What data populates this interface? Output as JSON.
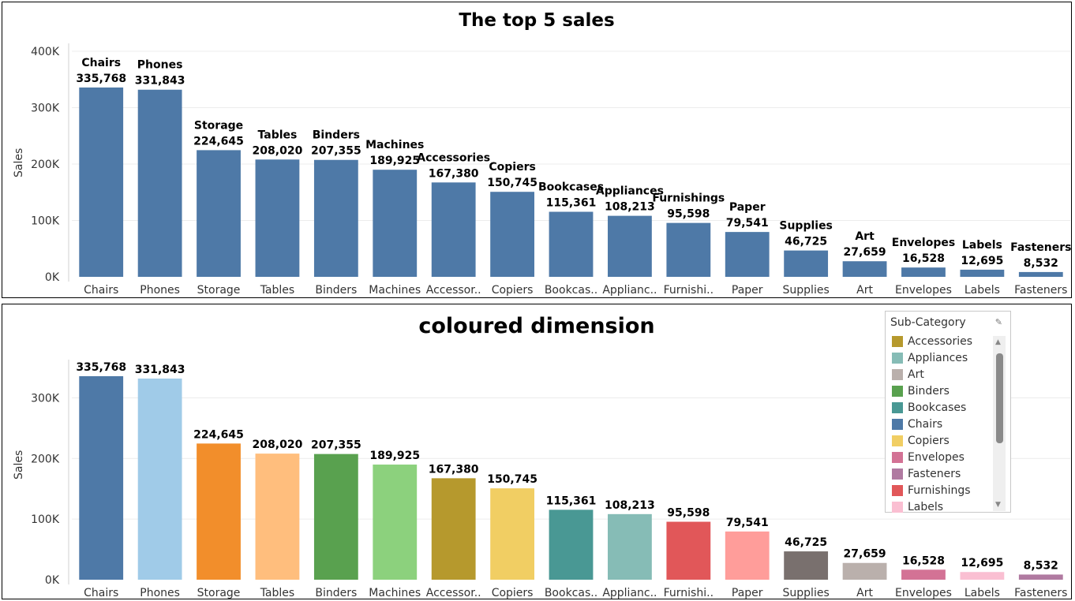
{
  "panels": [
    {
      "title": "The top 5 sales",
      "ylabel": "Sales",
      "label_mode": "name_and_value",
      "colored": false
    },
    {
      "title": "coloured dimension",
      "ylabel": "Sales",
      "label_mode": "value_only",
      "colored": true,
      "legend": {
        "title": "Sub-Category",
        "items": [
          "Accessories",
          "Appliances",
          "Art",
          "Binders",
          "Bookcases",
          "Chairs",
          "Copiers",
          "Envelopes",
          "Fasteners",
          "Furnishings",
          "Labels"
        ]
      }
    }
  ],
  "chart_data": [
    {
      "type": "bar",
      "title": "The top 5 sales",
      "xlabel": "",
      "ylabel": "Sales",
      "ylim": [
        0,
        400000
      ],
      "yticks": [
        "0K",
        "100K",
        "200K",
        "300K",
        "400K"
      ],
      "grid": true,
      "categories": [
        "Chairs",
        "Phones",
        "Storage",
        "Tables",
        "Binders",
        "Machines",
        "Accessories",
        "Copiers",
        "Bookcases",
        "Appliances",
        "Furnishings",
        "Paper",
        "Supplies",
        "Art",
        "Envelopes",
        "Labels",
        "Fasteners"
      ],
      "tick_labels": [
        "Chairs",
        "Phones",
        "Storage",
        "Tables",
        "Binders",
        "Machines",
        "Accessor..",
        "Copiers",
        "Bookcas..",
        "Applianc..",
        "Furnishi..",
        "Paper",
        "Supplies",
        "Art",
        "Envelopes",
        "Labels",
        "Fasteners"
      ],
      "values": [
        335768,
        331843,
        224645,
        208020,
        207355,
        189925,
        167380,
        150745,
        115361,
        108213,
        95598,
        79541,
        46725,
        27659,
        16528,
        12695,
        8532
      ],
      "data_labels": [
        "335,768",
        "331,843",
        "224,645",
        "208,020",
        "207,355",
        "189,925",
        "167,380",
        "150,745",
        "115,361",
        "108,213",
        "95,598",
        "79,541",
        "46,725",
        "27,659",
        "16,528",
        "12,695",
        "8,532"
      ],
      "color": "#4e79a7"
    },
    {
      "type": "bar",
      "title": "coloured dimension",
      "xlabel": "",
      "ylabel": "Sales",
      "ylim": [
        0,
        350000
      ],
      "yticks": [
        "0K",
        "100K",
        "200K",
        "300K"
      ],
      "grid": true,
      "legend_position": "top-right",
      "categories": [
        "Chairs",
        "Phones",
        "Storage",
        "Tables",
        "Binders",
        "Machines",
        "Accessories",
        "Copiers",
        "Bookcases",
        "Appliances",
        "Furnishings",
        "Paper",
        "Supplies",
        "Art",
        "Envelopes",
        "Labels",
        "Fasteners"
      ],
      "tick_labels": [
        "Chairs",
        "Phones",
        "Storage",
        "Tables",
        "Binders",
        "Machines",
        "Accessor..",
        "Copiers",
        "Bookcas..",
        "Applianc..",
        "Furnishi..",
        "Paper",
        "Supplies",
        "Art",
        "Envelopes",
        "Labels",
        "Fasteners"
      ],
      "values": [
        335768,
        331843,
        224645,
        208020,
        207355,
        189925,
        167380,
        150745,
        115361,
        108213,
        95598,
        79541,
        46725,
        27659,
        16528,
        12695,
        8532
      ],
      "data_labels": [
        "335,768",
        "331,843",
        "224,645",
        "208,020",
        "207,355",
        "189,925",
        "167,380",
        "150,745",
        "115,361",
        "108,213",
        "95,598",
        "79,541",
        "46,725",
        "27,659",
        "16,528",
        "12,695",
        "8,532"
      ],
      "colors": {
        "Chairs": "#4e79a7",
        "Phones": "#a0cbe8",
        "Storage": "#f28e2b",
        "Tables": "#ffbe7d",
        "Binders": "#59a14f",
        "Machines": "#8cd17d",
        "Accessories": "#b6992d",
        "Copiers": "#f1ce63",
        "Bookcases": "#499894",
        "Appliances": "#86bcb6",
        "Furnishings": "#e15759",
        "Paper": "#ff9d9a",
        "Supplies": "#79706e",
        "Art": "#bab0ac",
        "Envelopes": "#d37295",
        "Labels": "#fabfd2",
        "Fasteners": "#b07aa1"
      }
    }
  ]
}
